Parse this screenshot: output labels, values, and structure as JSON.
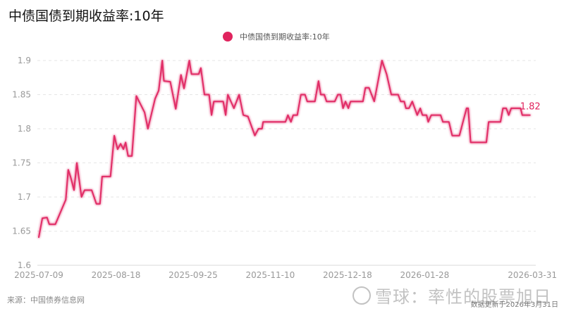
{
  "chart_data": {
    "type": "line",
    "title": "中债国债到期收益率:10年",
    "xlabel": "",
    "ylabel": "",
    "ylim": [
      1.6,
      1.9
    ],
    "yticks": [
      1.6,
      1.65,
      1.7,
      1.75,
      1.8,
      1.85,
      1.9
    ],
    "ytick_labels": [
      "1.6",
      "1.65",
      "1.7",
      "1.75",
      "1.8",
      "1.85",
      "1.9"
    ],
    "x_axis": "trading-day index",
    "xlim": [
      0,
      178.2
    ],
    "xticks": [
      {
        "index": 0,
        "label": "2025-07-09"
      },
      {
        "index": 28,
        "label": "2025-08-18"
      },
      {
        "index": 56,
        "label": "2025-09-25"
      },
      {
        "index": 84,
        "label": "2025-11-10"
      },
      {
        "index": 112,
        "label": "2025-12-18"
      },
      {
        "index": 140,
        "label": "2026-01-28"
      },
      {
        "index": 178.2,
        "label": "2026-03-31"
      }
    ],
    "grid": true,
    "legend_position": "top-center",
    "series": [
      {
        "name": "中债国债到期收益率:10年",
        "color": "#e0245e",
        "last_value_label": "1.82",
        "points": [
          [
            0,
            1.641
          ],
          [
            1.3,
            1.669
          ],
          [
            3.0,
            1.67
          ],
          [
            3.8,
            1.66
          ],
          [
            6.0,
            1.66
          ],
          [
            9.8,
            1.696
          ],
          [
            10.7,
            1.74
          ],
          [
            11.5,
            1.73
          ],
          [
            12.8,
            1.71
          ],
          [
            13.8,
            1.75
          ],
          [
            15.5,
            1.7
          ],
          [
            16.6,
            1.71
          ],
          [
            19.2,
            1.71
          ],
          [
            20.9,
            1.69
          ],
          [
            22.2,
            1.69
          ],
          [
            23.0,
            1.73
          ],
          [
            26.0,
            1.73
          ],
          [
            27.4,
            1.79
          ],
          [
            28.6,
            1.77
          ],
          [
            29.7,
            1.778
          ],
          [
            30.7,
            1.77
          ],
          [
            31.5,
            1.78
          ],
          [
            32.4,
            1.76
          ],
          [
            33.8,
            1.76
          ],
          [
            35.4,
            1.848
          ],
          [
            38.4,
            1.824
          ],
          [
            39.6,
            1.8
          ],
          [
            42.2,
            1.844
          ],
          [
            43.5,
            1.856
          ],
          [
            44.8,
            1.9
          ],
          [
            45.4,
            1.87
          ],
          [
            47.7,
            1.869
          ],
          [
            49.7,
            1.829
          ],
          [
            51.6,
            1.879
          ],
          [
            52.7,
            1.859
          ],
          [
            54.6,
            1.9
          ],
          [
            55.4,
            1.88
          ],
          [
            58.0,
            1.88
          ],
          [
            58.8,
            1.889
          ],
          [
            60.1,
            1.85
          ],
          [
            61.8,
            1.85
          ],
          [
            62.7,
            1.82
          ],
          [
            63.5,
            1.84
          ],
          [
            66.9,
            1.84
          ],
          [
            67.8,
            1.82
          ],
          [
            68.6,
            1.85
          ],
          [
            70.8,
            1.83
          ],
          [
            72.7,
            1.85
          ],
          [
            74.2,
            1.82
          ],
          [
            75.9,
            1.818
          ],
          [
            78.4,
            1.79
          ],
          [
            79.7,
            1.8
          ],
          [
            81.0,
            1.8
          ],
          [
            81.4,
            1.81
          ],
          [
            89.5,
            1.81
          ],
          [
            90.4,
            1.82
          ],
          [
            91.5,
            1.81
          ],
          [
            92.3,
            1.82
          ],
          [
            93.8,
            1.82
          ],
          [
            95.1,
            1.85
          ],
          [
            96.6,
            1.85
          ],
          [
            97.4,
            1.84
          ],
          [
            100.2,
            1.84
          ],
          [
            101.5,
            1.87
          ],
          [
            102.3,
            1.85
          ],
          [
            103.6,
            1.85
          ],
          [
            104.4,
            1.84
          ],
          [
            107.4,
            1.84
          ],
          [
            108.5,
            1.85
          ],
          [
            109.5,
            1.85
          ],
          [
            110.4,
            1.83
          ],
          [
            111.3,
            1.84
          ],
          [
            112.3,
            1.83
          ],
          [
            113.1,
            1.84
          ],
          [
            117.6,
            1.84
          ],
          [
            118.5,
            1.86
          ],
          [
            119.8,
            1.86
          ],
          [
            121.7,
            1.84
          ],
          [
            124.5,
            1.9
          ],
          [
            126.2,
            1.88
          ],
          [
            127.9,
            1.85
          ],
          [
            130.4,
            1.85
          ],
          [
            131.3,
            1.84
          ],
          [
            132.6,
            1.84
          ],
          [
            133.2,
            1.83
          ],
          [
            134.3,
            1.83
          ],
          [
            135.5,
            1.84
          ],
          [
            137.3,
            1.82
          ],
          [
            138.4,
            1.83
          ],
          [
            139.2,
            1.82
          ],
          [
            140.7,
            1.82
          ],
          [
            141.3,
            1.81
          ],
          [
            142.4,
            1.82
          ],
          [
            145.8,
            1.82
          ],
          [
            146.6,
            1.81
          ],
          [
            148.8,
            1.81
          ],
          [
            150.0,
            1.79
          ],
          [
            152.6,
            1.79
          ],
          [
            155.2,
            1.83
          ],
          [
            155.8,
            1.83
          ],
          [
            156.7,
            1.78
          ],
          [
            162.4,
            1.78
          ],
          [
            163.2,
            1.81
          ],
          [
            167.5,
            1.81
          ],
          [
            168.4,
            1.83
          ],
          [
            169.6,
            1.83
          ],
          [
            170.5,
            1.82
          ],
          [
            171.4,
            1.83
          ],
          [
            174.8,
            1.83
          ],
          [
            175.4,
            1.82
          ],
          [
            178.2,
            1.82
          ]
        ]
      }
    ]
  },
  "footer": {
    "source": "来源：中国债券信息网",
    "updated": "数据更新于2026年3月31日",
    "watermark": "雪球：率性的股票旭日"
  }
}
